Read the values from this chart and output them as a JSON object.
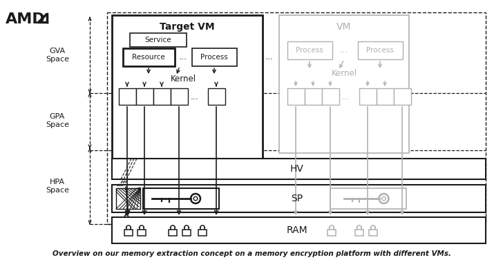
{
  "title": "Overview on our memory extraction concept on a memory encryption platform with different VMs.",
  "background_color": "#ffffff",
  "dark_color": "#1a1a1a",
  "gray_color": "#b0b0b0",
  "label_gva": "GVA\nSpace",
  "label_gpa": "GPA\nSpace",
  "label_hpa": "HPA\nSpace",
  "label_target_vm": "Target VM",
  "label_vm": "VM",
  "label_service": "Service",
  "label_resource": "Resource",
  "label_process": "Process",
  "label_kernel": "Kernel",
  "label_hv": "HV",
  "label_sp": "SP",
  "label_ram": "RAM"
}
